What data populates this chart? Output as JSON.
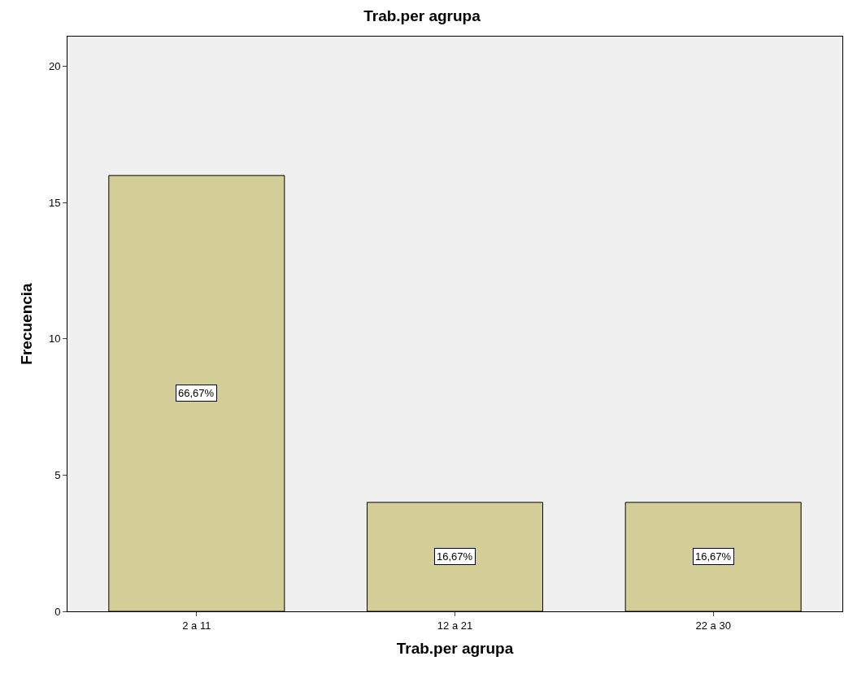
{
  "chart_data": {
    "type": "bar",
    "title": "Trab.per agrupa",
    "xlabel": "Trab.per agrupa",
    "ylabel": "Frecuencia",
    "categories": [
      "2 a 11",
      "12 a 21",
      "22 a 30"
    ],
    "values": [
      16,
      4,
      4
    ],
    "color": "#d3ce97",
    "annotations": [
      "66,67%",
      "16,67%",
      "16,67%"
    ],
    "ylim": [
      0,
      21.1
    ],
    "yticks": [
      0,
      5,
      10,
      15,
      20
    ],
    "grid": false,
    "legend": false
  }
}
